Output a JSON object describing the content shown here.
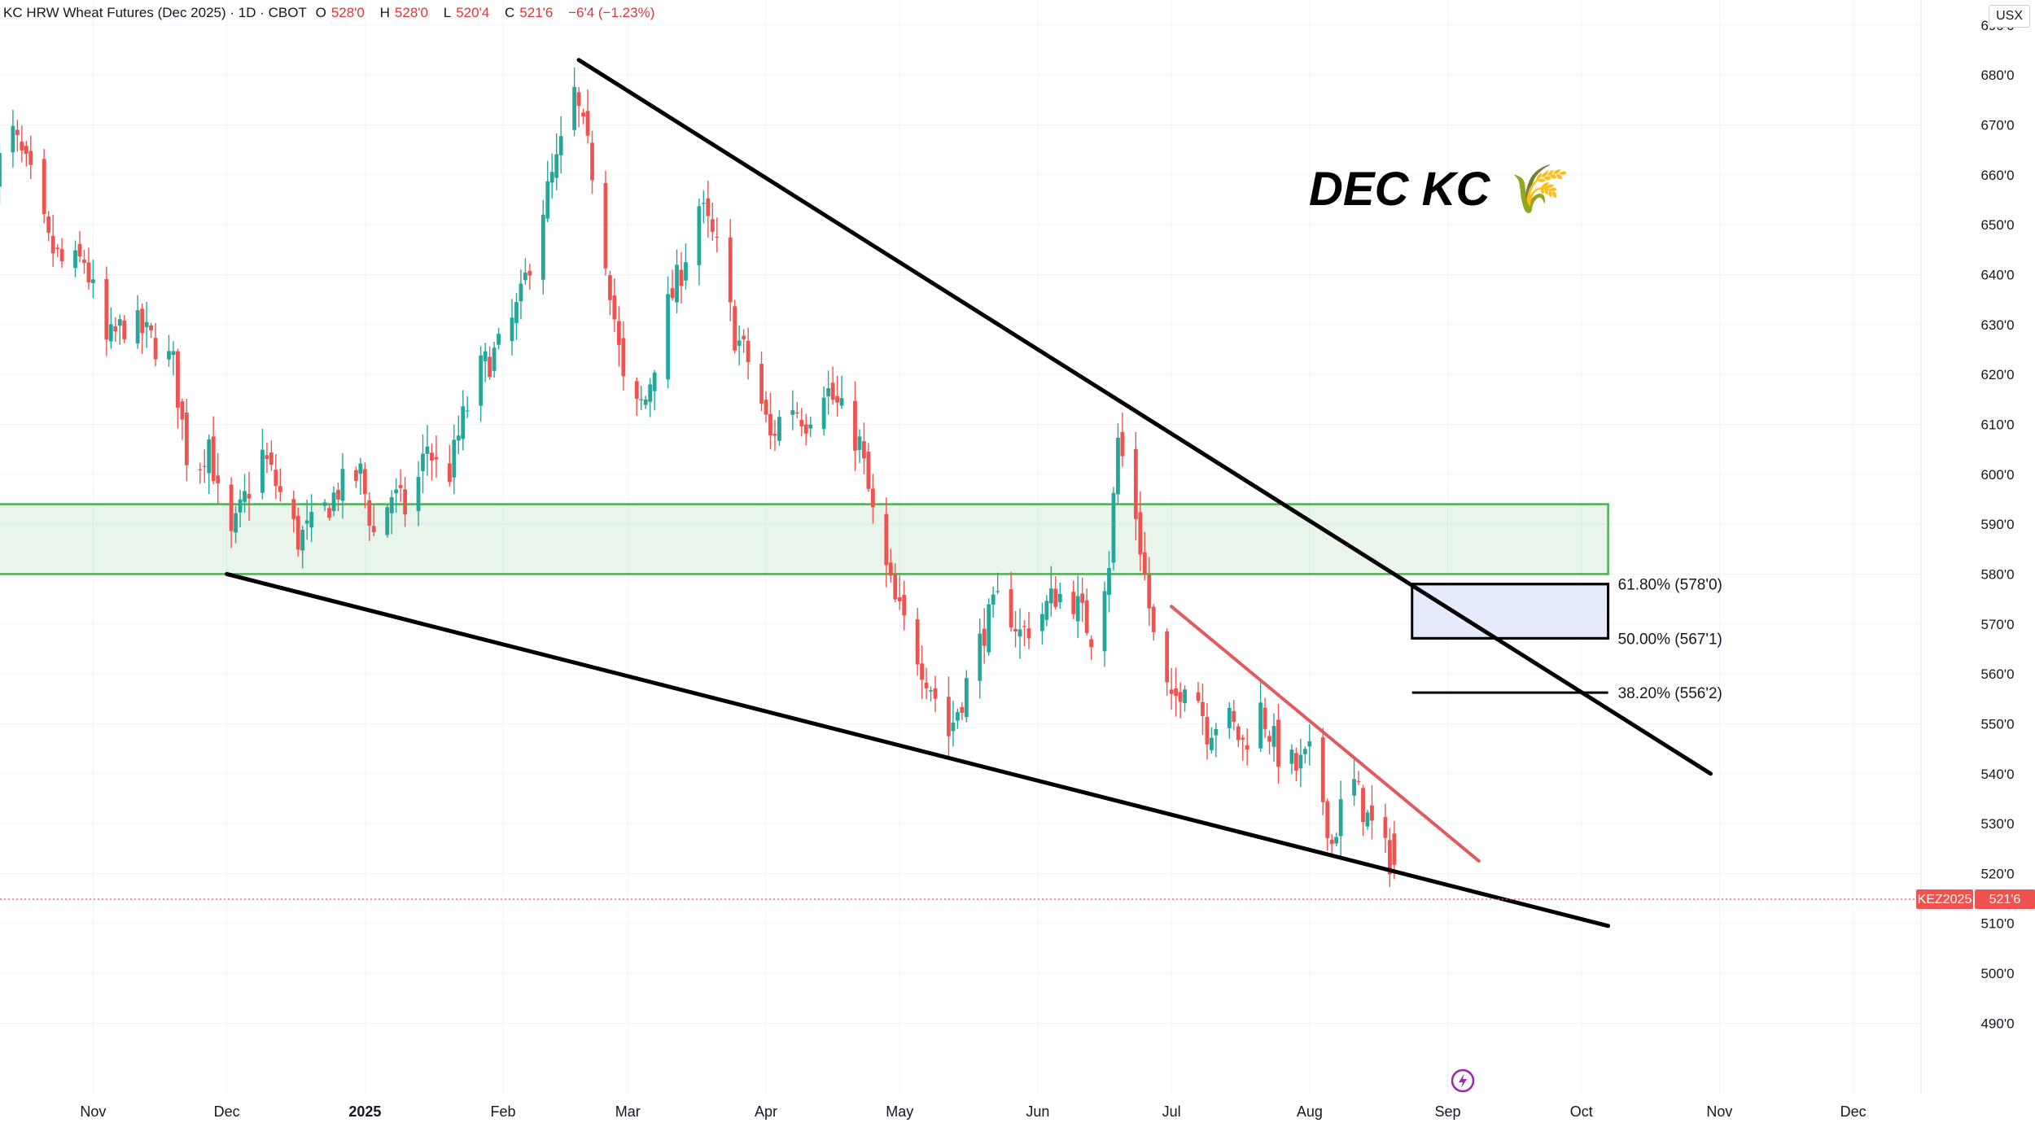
{
  "header": {
    "symbol_desc": "KC HRW Wheat Futures (Dec 2025) · 1D · CBOT",
    "open_label": "O",
    "open": "528'0",
    "high_label": "H",
    "high": "528'0",
    "low_label": "L",
    "low": "520'4",
    "close_label": "C",
    "close": "521'6",
    "change": "−6'4 (−1.23%)"
  },
  "currency": "USX",
  "annotation": "DEC KC 🌾",
  "price_tag": {
    "symbol": "KEZ2025",
    "price": "521'6",
    "value": 521.75
  },
  "colors": {
    "up": "#26a69a",
    "down": "#ef5350",
    "support_zone": "#4caf50",
    "fib_zone": "#e6eafd",
    "trendline": "#000000",
    "short_trend": "#e05a5e"
  },
  "chart_data": {
    "type": "candlestick",
    "title": "KC HRW Wheat Futures (Dec 2025)",
    "y_ticks": [
      "490'0",
      "500'0",
      "510'0",
      "520'0",
      "530'0",
      "540'0",
      "550'0",
      "560'0",
      "570'0",
      "580'0",
      "590'0",
      "600'0",
      "610'0",
      "620'0",
      "630'0",
      "640'0",
      "650'0",
      "660'0",
      "670'0",
      "680'0",
      "690'0"
    ],
    "ylim": [
      486,
      696
    ],
    "x_ticks": [
      "Nov",
      "Dec",
      "2025",
      "Feb",
      "Mar",
      "Apr",
      "May",
      "Jun",
      "Jul",
      "Aug",
      "Sep",
      "Oct",
      "Nov",
      "Dec"
    ],
    "x_tick_dates": [
      "2024-11-01",
      "2024-12-01",
      "2025-01-01",
      "2025-02-01",
      "2025-03-01",
      "2025-04-01",
      "2025-05-01",
      "2025-06-01",
      "2025-07-01",
      "2025-08-01",
      "2025-09-01",
      "2025-10-01",
      "2025-11-01",
      "2025-12-01"
    ],
    "xlim": [
      "2024-10-10",
      "2025-12-20"
    ],
    "price_path": [
      [
        "2024-10-10",
        661
      ],
      [
        "2024-10-14",
        668
      ],
      [
        "2024-10-18",
        659
      ],
      [
        "2024-10-22",
        646
      ],
      [
        "2024-10-26",
        641
      ],
      [
        "2024-10-30",
        643
      ],
      [
        "2024-11-04",
        626
      ],
      [
        "2024-11-09",
        631
      ],
      [
        "2024-11-14",
        627
      ],
      [
        "2024-11-19",
        622
      ],
      [
        "2024-11-23",
        598
      ],
      [
        "2024-11-27",
        607
      ],
      [
        "2024-12-01",
        584
      ],
      [
        "2024-12-05",
        595
      ],
      [
        "2024-12-09",
        604
      ],
      [
        "2024-12-13",
        596
      ],
      [
        "2024-12-17",
        587
      ],
      [
        "2024-12-21",
        590
      ],
      [
        "2024-12-26",
        597
      ],
      [
        "2024-12-31",
        600
      ],
      [
        "2025-01-03",
        588
      ],
      [
        "2025-01-07",
        596
      ],
      [
        "2025-01-11",
        592
      ],
      [
        "2025-01-15",
        606
      ],
      [
        "2025-01-19",
        597
      ],
      [
        "2025-01-23",
        611
      ],
      [
        "2025-01-27",
        621
      ],
      [
        "2025-02-01",
        626
      ],
      [
        "2025-02-05",
        635
      ],
      [
        "2025-02-09",
        651
      ],
      [
        "2025-02-13",
        662
      ],
      [
        "2025-02-17",
        676
      ],
      [
        "2025-02-21",
        661
      ],
      [
        "2025-02-25",
        638
      ],
      [
        "2025-03-01",
        611
      ],
      [
        "2025-03-05",
        615
      ],
      [
        "2025-03-09",
        631
      ],
      [
        "2025-03-13",
        641
      ],
      [
        "2025-03-17",
        654
      ],
      [
        "2025-03-21",
        645
      ],
      [
        "2025-03-25",
        628
      ],
      [
        "2025-03-29",
        621
      ],
      [
        "2025-04-02",
        607
      ],
      [
        "2025-04-06",
        615
      ],
      [
        "2025-04-10",
        611
      ],
      [
        "2025-04-14",
        618
      ],
      [
        "2025-04-18",
        612
      ],
      [
        "2025-04-22",
        606
      ],
      [
        "2025-04-26",
        587
      ],
      [
        "2025-04-30",
        574
      ],
      [
        "2025-05-04",
        566
      ],
      [
        "2025-05-08",
        558
      ],
      [
        "2025-05-12",
        548
      ],
      [
        "2025-05-16",
        558
      ],
      [
        "2025-05-20",
        569
      ],
      [
        "2025-05-24",
        576
      ],
      [
        "2025-05-28",
        568
      ],
      [
        "2025-06-01",
        571
      ],
      [
        "2025-06-05",
        576
      ],
      [
        "2025-06-09",
        575
      ],
      [
        "2025-06-13",
        568
      ],
      [
        "2025-06-17",
        583
      ],
      [
        "2025-06-19",
        607
      ],
      [
        "2025-06-23",
        592
      ],
      [
        "2025-06-27",
        567
      ],
      [
        "2025-07-01",
        553
      ],
      [
        "2025-07-05",
        562
      ],
      [
        "2025-07-09",
        549
      ],
      [
        "2025-07-13",
        552
      ],
      [
        "2025-07-17",
        546
      ],
      [
        "2025-07-21",
        553
      ],
      [
        "2025-07-25",
        544
      ],
      [
        "2025-07-29",
        541
      ],
      [
        "2025-08-02",
        544
      ],
      [
        "2025-08-06",
        526
      ],
      [
        "2025-08-10",
        540
      ],
      [
        "2025-08-14",
        531
      ],
      [
        "2025-08-18",
        524
      ],
      [
        "2025-08-20",
        521.75
      ]
    ],
    "zones": [
      {
        "type": "support",
        "from": "2024-10-10",
        "to": "2025-10-07",
        "low": 580,
        "high": 594
      },
      {
        "type": "fib",
        "from": "2025-08-24",
        "to": "2025-10-07",
        "low": 567.125,
        "high": 578
      }
    ],
    "fib_levels": [
      {
        "label": "61.80% (578'0)",
        "value": 578
      },
      {
        "label": "50.00% (567'1)",
        "value": 567.125
      },
      {
        "label": "38.20% (556'2)",
        "value": 556.25
      }
    ],
    "trendlines": [
      {
        "name": "upper",
        "from": [
          "2025-02-18",
          683
        ],
        "to": [
          "2025-10-30",
          540
        ]
      },
      {
        "name": "lower",
        "from": [
          "2024-12-01",
          580
        ],
        "to": [
          "2025-10-07",
          509.5
        ]
      },
      {
        "name": "short",
        "from": [
          "2025-07-01",
          573.5
        ],
        "to": [
          "2025-09-08",
          522.5
        ]
      }
    ]
  }
}
